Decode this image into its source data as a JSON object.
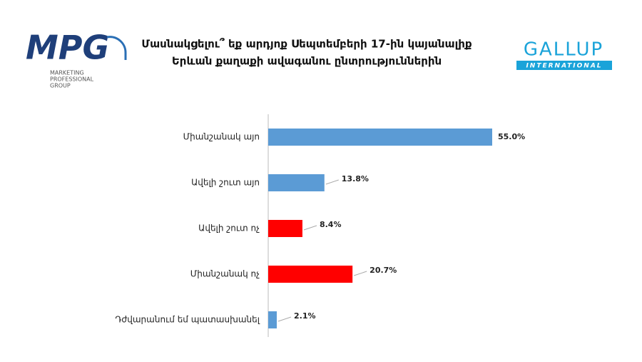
{
  "logos": {
    "mpg": "MPG",
    "mpg_sub": [
      "MARKETING",
      "PROFESSIONAL",
      "GROUP"
    ],
    "gallup": "GALLUP",
    "gallup_sub": "INTERNATIONAL"
  },
  "chart_data": {
    "type": "bar",
    "orientation": "horizontal",
    "title": [
      "Մասնակցելու՞ եք արդյոք Սեպտեմբերի 17-ին կայանալիք",
      "Երևան քաղաքի ավագանու ընտրություններին"
    ],
    "categories": [
      "Միանշանակ այո",
      "Ավելի շուտ այո",
      "Ավելի շուտ ոչ",
      "Միանշանակ ոչ",
      "Դժվարանում եմ պատասխանել"
    ],
    "values": [
      55.0,
      13.8,
      8.4,
      20.7,
      2.1
    ],
    "value_labels": [
      "55.0%",
      "13.8%",
      "8.4%",
      "20.7%",
      "2.1%"
    ],
    "colors": [
      "#5b9bd5",
      "#5b9bd5",
      "#ff0000",
      "#ff0000",
      "#5b9bd5"
    ]
  }
}
